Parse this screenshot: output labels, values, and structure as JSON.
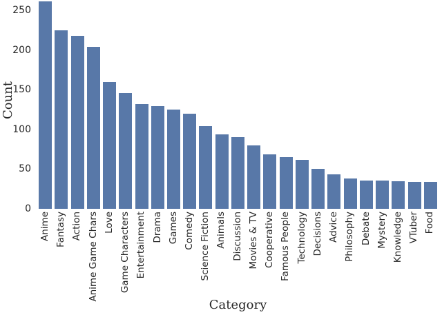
{
  "chart_data": {
    "type": "bar",
    "title": "",
    "xlabel": "Category",
    "ylabel": "Count",
    "categories": [
      "Anime",
      "Fantasy",
      "Action",
      "Anime Game Chars",
      "Love",
      "Game Characters",
      "Entertainment",
      "Drama",
      "Games",
      "Comedy",
      "Science Fiction",
      "Animals",
      "Discussion",
      "Movies & TV",
      "Cooperative",
      "Famous People",
      "Technology",
      "Decisions",
      "Advice",
      "Philosophy",
      "Debate",
      "Mystery",
      "Knowledge",
      "VTuber",
      "Food"
    ],
    "values": [
      261,
      225,
      218,
      204,
      160,
      146,
      132,
      129,
      125,
      120,
      104,
      94,
      90,
      80,
      69,
      65,
      62,
      50,
      43,
      38,
      36,
      36,
      35,
      34,
      34
    ],
    "yticks": [
      0,
      50,
      100,
      150,
      200,
      250
    ],
    "ylim": [
      0,
      263
    ],
    "bar_color": "#5878a8",
    "grid": false,
    "legend": null
  }
}
